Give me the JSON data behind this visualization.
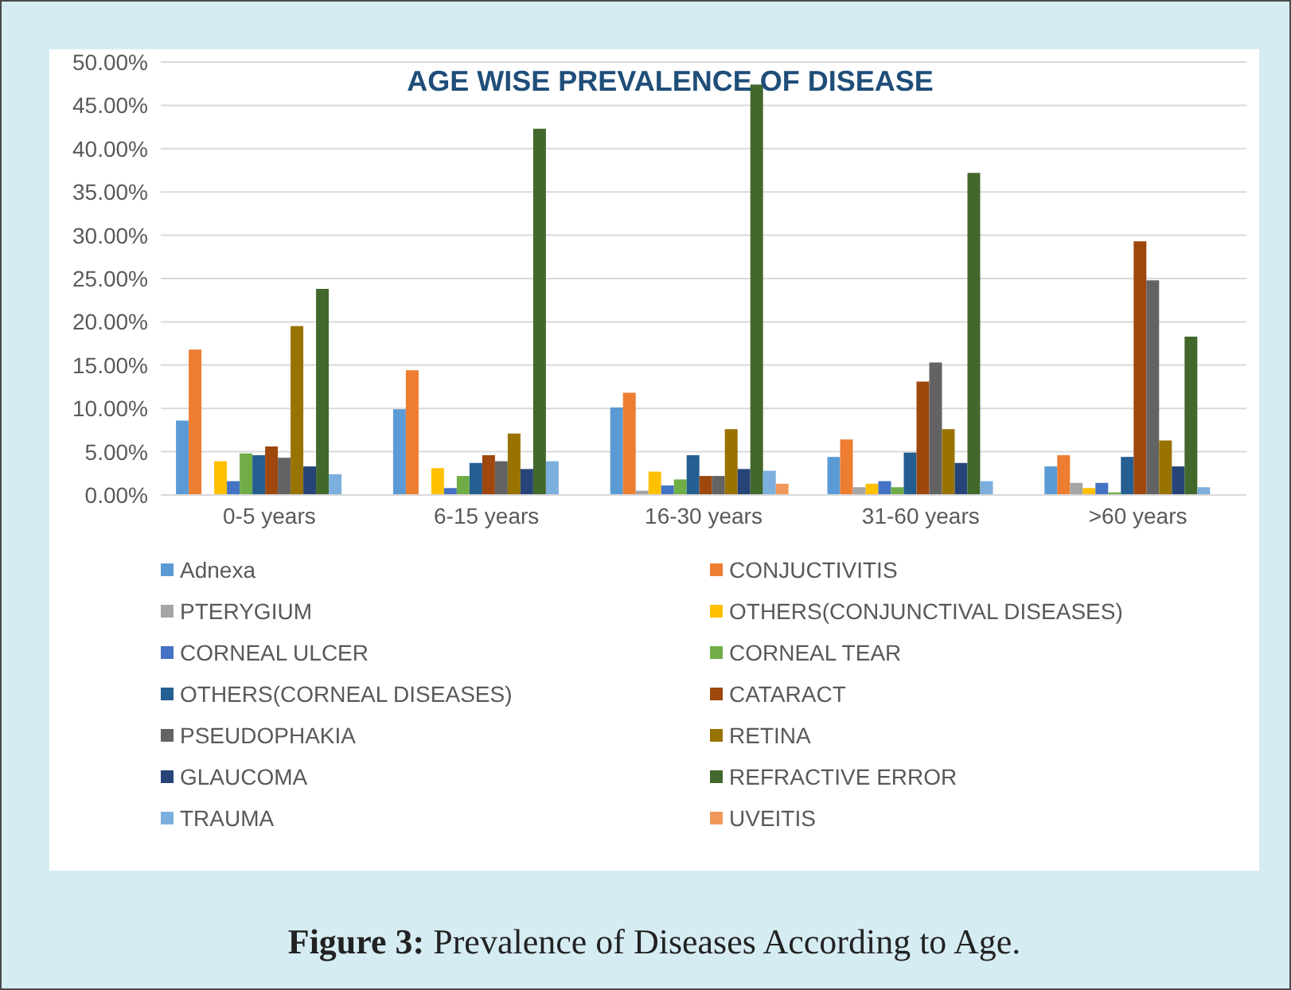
{
  "chart_data": {
    "type": "bar",
    "title": "AGE WISE PREVALENCE OF DISEASE",
    "categories": [
      "0-5 years",
      "6-15 years",
      "16-30 years",
      "31-60 years",
      ">60 years"
    ],
    "series": [
      {
        "name": "Adnexa",
        "color": "#5b9bd5",
        "values": [
          8.6,
          9.9,
          10.1,
          4.4,
          3.3
        ]
      },
      {
        "name": "CONJUCTIVITIS",
        "color": "#ed7d31",
        "values": [
          16.8,
          14.4,
          11.8,
          6.4,
          4.6
        ]
      },
      {
        "name": "PTERYGIUM",
        "color": "#a5a5a5",
        "values": [
          0,
          0,
          0.5,
          0.9,
          1.4
        ]
      },
      {
        "name": "OTHERS(CONJUNCTIVAL DISEASES)",
        "color": "#ffc000",
        "values": [
          3.9,
          3.1,
          2.7,
          1.3,
          0.8
        ]
      },
      {
        "name": "CORNEAL ULCER",
        "color": "#4472c4",
        "values": [
          1.6,
          0.8,
          1.1,
          1.6,
          1.4
        ]
      },
      {
        "name": "CORNEAL TEAR",
        "color": "#70ad47",
        "values": [
          4.8,
          2.2,
          1.8,
          0.9,
          0.3
        ]
      },
      {
        "name": "OTHERS(CORNEAL DISEASES)",
        "color": "#255e91",
        "values": [
          4.6,
          3.7,
          4.6,
          4.9,
          4.4
        ]
      },
      {
        "name": "CATARACT",
        "color": "#9e480e",
        "values": [
          5.6,
          4.6,
          2.2,
          13.1,
          29.3
        ]
      },
      {
        "name": "PSEUDOPHAKIA",
        "color": "#636363",
        "values": [
          4.3,
          3.9,
          2.2,
          15.3,
          24.8
        ]
      },
      {
        "name": "RETINA",
        "color": "#997300",
        "values": [
          19.5,
          7.1,
          7.6,
          7.6,
          6.3
        ]
      },
      {
        "name": "GLAUCOMA",
        "color": "#264478",
        "values": [
          3.3,
          3.0,
          3.0,
          3.7,
          3.3
        ]
      },
      {
        "name": "REFRACTIVE ERROR",
        "color": "#43682b",
        "values": [
          23.8,
          42.3,
          47.4,
          37.2,
          18.3
        ]
      },
      {
        "name": "TRAUMA",
        "color": "#7cafdd",
        "values": [
          2.4,
          3.9,
          2.8,
          1.6,
          0.9
        ]
      },
      {
        "name": "UVEITIS",
        "color": "#f1975a",
        "values": [
          0,
          0,
          1.3,
          0,
          0
        ]
      }
    ],
    "ylim": [
      0,
      50
    ],
    "yticks": [
      {
        "value": 0,
        "label": "0.00%"
      },
      {
        "value": 5,
        "label": "5.00%"
      },
      {
        "value": 10,
        "label": "10.00%"
      },
      {
        "value": 15,
        "label": "15.00%"
      },
      {
        "value": 20,
        "label": "20.00%"
      },
      {
        "value": 25,
        "label": "25.00%"
      },
      {
        "value": 30,
        "label": "30.00%"
      },
      {
        "value": 35,
        "label": "35.00%"
      },
      {
        "value": 40,
        "label": "40.00%"
      },
      {
        "value": 45,
        "label": "45.00%"
      },
      {
        "value": 50,
        "label": "50.00%"
      }
    ],
    "grid": "y",
    "legend": "bottom",
    "annotations": [
      "Figure 3: Prevalence of Diseases According to Age."
    ]
  }
}
